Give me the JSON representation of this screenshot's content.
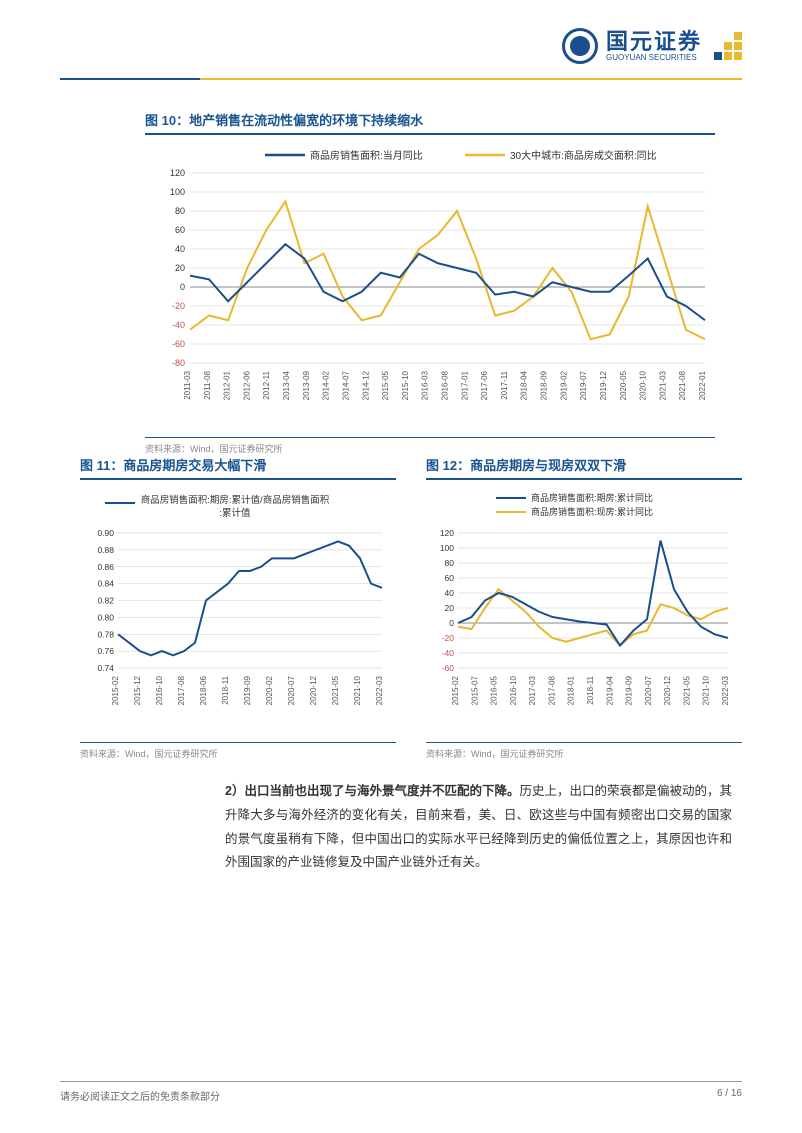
{
  "header": {
    "company_cn": "国元证券",
    "company_en": "GUOYUAN SECURITIES"
  },
  "chart10": {
    "title": "图 10：地产销售在流动性偏宽的环境下持续缩水",
    "type": "line",
    "legend": [
      {
        "label": "商品房销售面积:当月同比",
        "color": "#1a4e8e"
      },
      {
        "label": "30大中城市:商品房成交面积:同比",
        "color": "#e8b82e"
      }
    ],
    "ylim": [
      -80,
      120
    ],
    "ytick_step": 20,
    "yticks": [
      -80,
      -60,
      -40,
      -20,
      0,
      20,
      40,
      60,
      80,
      100,
      120
    ],
    "neg_tick_color": "#c0504d",
    "pos_tick_color": "#333333",
    "xlabels": [
      "2011-03",
      "2011-08",
      "2012-01",
      "2012-06",
      "2012-11",
      "2013-04",
      "2013-09",
      "2014-02",
      "2014-07",
      "2014-12",
      "2015-05",
      "2015-10",
      "2016-03",
      "2016-08",
      "2017-01",
      "2017-06",
      "2017-11",
      "2018-04",
      "2018-09",
      "2019-02",
      "2019-07",
      "2019-12",
      "2020-05",
      "2020-10",
      "2021-03",
      "2021-08",
      "2022-01"
    ],
    "series1_color": "#1a4e8e",
    "series2_color": "#e8b82e",
    "grid_color": "#cccccc",
    "background_color": "#ffffff",
    "series1": [
      12,
      8,
      -15,
      5,
      25,
      45,
      30,
      -5,
      -15,
      -5,
      15,
      10,
      35,
      25,
      20,
      15,
      -8,
      -5,
      -10,
      5,
      0,
      -5,
      -5,
      12,
      30,
      -10,
      -20,
      -35
    ],
    "series2": [
      -45,
      -30,
      -35,
      20,
      60,
      90,
      25,
      35,
      -10,
      -35,
      -30,
      5,
      40,
      55,
      80,
      30,
      -30,
      -25,
      -10,
      20,
      -5,
      -55,
      -50,
      -10,
      85,
      20,
      -45,
      -55
    ],
    "source": "资料来源：Wind，国元证券研究所"
  },
  "chart11": {
    "title": "图 11：商品房期房交易大幅下滑",
    "type": "line",
    "legend_label": "商品房销售面积:期房:累计值/商品房销售面积:累计值",
    "legend_color": "#1a4e8e",
    "ylim": [
      0.74,
      0.9
    ],
    "yticks": [
      0.74,
      0.76,
      0.78,
      0.8,
      0.82,
      0.84,
      0.86,
      0.88,
      0.9
    ],
    "xlabels": [
      "2015-02",
      "2015-12",
      "2016-10",
      "2017-08",
      "2018-06",
      "2018-11",
      "2019-09",
      "2020-02",
      "2020-07",
      "2020-12",
      "2021-05",
      "2021-10",
      "2022-03"
    ],
    "series_color": "#1a4e8e",
    "grid_color": "#cccccc",
    "series": [
      0.78,
      0.77,
      0.76,
      0.755,
      0.76,
      0.755,
      0.76,
      0.77,
      0.82,
      0.83,
      0.84,
      0.855,
      0.855,
      0.86,
      0.87,
      0.87,
      0.87,
      0.875,
      0.88,
      0.885,
      0.89,
      0.885,
      0.87,
      0.84,
      0.835
    ],
    "source": "资料来源：Wind，国元证券研究所"
  },
  "chart12": {
    "title": "图 12：商品房期房与现房双双下滑",
    "type": "line",
    "legend": [
      {
        "label": "商品房销售面积:期房:累计同比",
        "color": "#1a4e8e"
      },
      {
        "label": "商品房销售面积:现房:累计同比",
        "color": "#e8b82e"
      }
    ],
    "ylim": [
      -60,
      120
    ],
    "yticks": [
      -60,
      -40,
      -20,
      0,
      20,
      40,
      60,
      80,
      100,
      120
    ],
    "neg_tick_color": "#c0504d",
    "pos_tick_color": "#333333",
    "xlabels": [
      "2015-02",
      "2015-07",
      "2016-05",
      "2016-10",
      "2017-03",
      "2017-08",
      "2018-01",
      "2018-11",
      "2019-04",
      "2019-09",
      "2020-07",
      "2020-12",
      "2021-05",
      "2021-10",
      "2022-03"
    ],
    "series1_color": "#1a4e8e",
    "series2_color": "#e8b82e",
    "grid_color": "#cccccc",
    "series1": [
      0,
      8,
      30,
      40,
      35,
      25,
      15,
      8,
      5,
      2,
      0,
      -2,
      -30,
      -10,
      5,
      110,
      45,
      15,
      -5,
      -15,
      -20
    ],
    "series2": [
      -5,
      -8,
      20,
      45,
      30,
      15,
      -5,
      -20,
      -25,
      -20,
      -15,
      -10,
      -30,
      -15,
      -10,
      25,
      20,
      10,
      5,
      15,
      20
    ],
    "source": "资料来源：Wind，国元证券研究所"
  },
  "body": {
    "prefix": "2）出口当前也出现了与海外景气度并不匹配的下降。",
    "text": "历史上，出口的荣衰都是偏被动的，其升降大多与海外经济的变化有关，目前来看，美、日、欧这些与中国有频密出口交易的国家的景气度虽稍有下降，但中国出口的实际水平已经降到历史的偏低位置之上，其原因也许和外围国家的产业链修复及中国产业链外迁有关。"
  },
  "footer": {
    "disclaimer": "请务必阅读正文之后的免责条款部分",
    "page": "6 / 16"
  }
}
